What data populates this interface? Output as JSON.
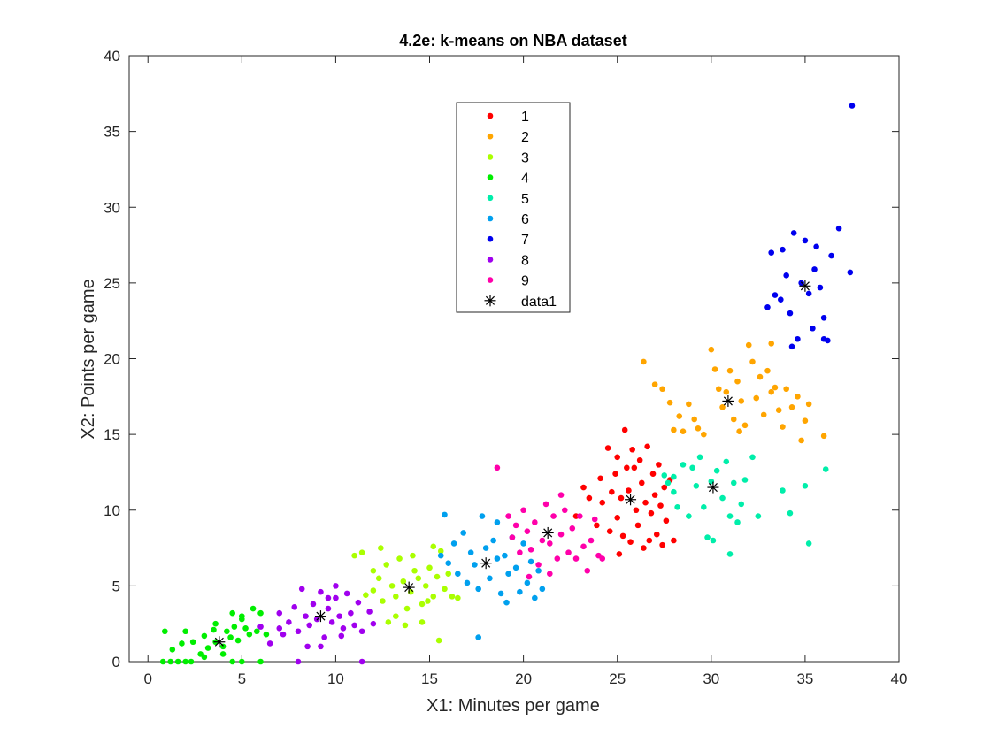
{
  "chart_data": {
    "type": "scatter",
    "title": "4.2e: k-means on NBA dataset",
    "xlabel": "X1: Minutes per game",
    "ylabel": "X2: Points per game",
    "xlim": [
      -1,
      40
    ],
    "ylim": [
      0,
      40
    ],
    "xticks": [
      0,
      5,
      10,
      15,
      20,
      25,
      30,
      35,
      40
    ],
    "yticks": [
      0,
      5,
      10,
      15,
      20,
      25,
      30,
      35,
      40
    ],
    "grid": false,
    "legend_position": "top-center",
    "series": [
      {
        "name": "1",
        "color": "#ff0000",
        "marker": "dot",
        "points": [
          [
            24.2,
            10.5
          ],
          [
            24.5,
            14.1
          ],
          [
            24.7,
            11.2
          ],
          [
            24.9,
            12.4
          ],
          [
            25.0,
            9.5
          ],
          [
            25.2,
            10.8
          ],
          [
            25.3,
            8.3
          ],
          [
            25.4,
            15.3
          ],
          [
            25.5,
            12.8
          ],
          [
            25.6,
            11.3
          ],
          [
            25.8,
            14.0
          ],
          [
            25.9,
            12.8
          ],
          [
            26.0,
            10.0
          ],
          [
            26.1,
            9.0
          ],
          [
            26.2,
            13.3
          ],
          [
            26.3,
            11.8
          ],
          [
            26.4,
            7.5
          ],
          [
            26.5,
            10.5
          ],
          [
            26.6,
            14.2
          ],
          [
            26.8,
            9.8
          ],
          [
            26.9,
            12.4
          ],
          [
            27.0,
            11.0
          ],
          [
            27.1,
            8.4
          ],
          [
            27.2,
            13.0
          ],
          [
            27.3,
            10.3
          ],
          [
            27.5,
            11.5
          ],
          [
            27.6,
            9.3
          ],
          [
            27.8,
            12.0
          ],
          [
            23.9,
            9.0
          ],
          [
            24.1,
            12.1
          ],
          [
            23.5,
            10.8
          ],
          [
            23.2,
            11.5
          ],
          [
            24.6,
            8.6
          ],
          [
            25.1,
            7.1
          ],
          [
            25.7,
            7.9
          ],
          [
            26.7,
            8.0
          ],
          [
            27.4,
            7.7
          ],
          [
            28.0,
            8.0
          ],
          [
            22.8,
            9.6
          ],
          [
            25.0,
            13.5
          ]
        ]
      },
      {
        "name": "2",
        "color": "#ffa500",
        "marker": "dot",
        "points": [
          [
            26.4,
            19.8
          ],
          [
            27.0,
            18.3
          ],
          [
            27.4,
            18.0
          ],
          [
            27.8,
            17.1
          ],
          [
            28.3,
            16.2
          ],
          [
            28.5,
            15.2
          ],
          [
            28.8,
            17.0
          ],
          [
            29.1,
            16.0
          ],
          [
            29.3,
            15.4
          ],
          [
            30.0,
            20.6
          ],
          [
            30.2,
            19.3
          ],
          [
            30.4,
            18.0
          ],
          [
            30.6,
            16.8
          ],
          [
            30.8,
            17.8
          ],
          [
            31.0,
            19.2
          ],
          [
            31.2,
            16.0
          ],
          [
            31.4,
            18.5
          ],
          [
            31.6,
            17.2
          ],
          [
            31.8,
            15.6
          ],
          [
            32.0,
            20.9
          ],
          [
            32.2,
            19.8
          ],
          [
            32.4,
            17.4
          ],
          [
            32.6,
            18.8
          ],
          [
            32.8,
            16.3
          ],
          [
            33.0,
            19.2
          ],
          [
            33.2,
            17.8
          ],
          [
            33.4,
            18.1
          ],
          [
            33.6,
            16.6
          ],
          [
            33.8,
            15.5
          ],
          [
            34.0,
            18.0
          ],
          [
            34.3,
            16.8
          ],
          [
            34.6,
            17.5
          ],
          [
            34.8,
            14.6
          ],
          [
            35.0,
            15.9
          ],
          [
            36.0,
            14.9
          ],
          [
            28.0,
            15.3
          ],
          [
            29.6,
            15.0
          ],
          [
            31.5,
            15.2
          ],
          [
            33.2,
            21.0
          ],
          [
            35.2,
            17.0
          ]
        ]
      },
      {
        "name": "3",
        "color": "#aaff00",
        "marker": "dot",
        "points": [
          [
            11.0,
            7.0
          ],
          [
            11.4,
            7.2
          ],
          [
            12.0,
            6.0
          ],
          [
            12.3,
            5.5
          ],
          [
            12.5,
            4.0
          ],
          [
            12.7,
            6.4
          ],
          [
            13.0,
            5.0
          ],
          [
            13.2,
            4.3
          ],
          [
            13.4,
            6.8
          ],
          [
            13.6,
            5.3
          ],
          [
            13.8,
            3.5
          ],
          [
            14.0,
            4.6
          ],
          [
            14.2,
            6.0
          ],
          [
            14.4,
            5.5
          ],
          [
            14.6,
            3.8
          ],
          [
            14.8,
            5.0
          ],
          [
            15.0,
            6.2
          ],
          [
            15.2,
            4.3
          ],
          [
            15.4,
            5.6
          ],
          [
            15.6,
            7.3
          ],
          [
            15.8,
            4.8
          ],
          [
            16.0,
            5.8
          ],
          [
            16.2,
            4.3
          ],
          [
            12.0,
            4.7
          ],
          [
            13.2,
            3.0
          ],
          [
            14.1,
            7.0
          ],
          [
            15.2,
            7.6
          ],
          [
            12.4,
            7.5
          ],
          [
            15.5,
            1.4
          ],
          [
            16.5,
            4.2
          ],
          [
            13.7,
            2.4
          ],
          [
            14.6,
            2.6
          ],
          [
            11.6,
            4.4
          ],
          [
            12.8,
            2.6
          ],
          [
            14.9,
            4.0
          ]
        ]
      },
      {
        "name": "4",
        "color": "#00ee00",
        "marker": "dot",
        "points": [
          [
            0.8,
            0.0
          ],
          [
            1.2,
            0.0
          ],
          [
            1.6,
            0.0
          ],
          [
            2.0,
            0.0
          ],
          [
            2.3,
            0.0
          ],
          [
            0.9,
            2.0
          ],
          [
            1.3,
            0.8
          ],
          [
            2.0,
            2.0
          ],
          [
            2.4,
            1.3
          ],
          [
            2.8,
            0.5
          ],
          [
            3.0,
            1.7
          ],
          [
            3.2,
            0.9
          ],
          [
            3.5,
            2.1
          ],
          [
            3.6,
            1.3
          ],
          [
            4.0,
            1.0
          ],
          [
            4.2,
            2.0
          ],
          [
            4.4,
            1.6
          ],
          [
            4.6,
            2.3
          ],
          [
            4.8,
            1.4
          ],
          [
            5.0,
            2.8
          ],
          [
            5.2,
            2.2
          ],
          [
            5.4,
            1.8
          ],
          [
            5.6,
            3.5
          ],
          [
            5.8,
            2.0
          ],
          [
            6.0,
            3.2
          ],
          [
            4.5,
            0.0
          ],
          [
            5.0,
            0.0
          ],
          [
            6.0,
            0.0
          ],
          [
            3.6,
            2.5
          ],
          [
            4.5,
            3.2
          ],
          [
            5.0,
            3.0
          ],
          [
            4.0,
            0.5
          ],
          [
            3.0,
            0.3
          ],
          [
            1.8,
            1.2
          ],
          [
            6.3,
            1.8
          ]
        ]
      },
      {
        "name": "5",
        "color": "#00eeaa",
        "marker": "dot",
        "points": [
          [
            27.5,
            12.3
          ],
          [
            28.0,
            11.2
          ],
          [
            28.2,
            10.2
          ],
          [
            28.5,
            13.0
          ],
          [
            28.8,
            9.6
          ],
          [
            29.0,
            12.8
          ],
          [
            29.2,
            11.6
          ],
          [
            29.4,
            13.5
          ],
          [
            29.6,
            10.2
          ],
          [
            29.8,
            8.2
          ],
          [
            30.0,
            11.9
          ],
          [
            30.3,
            12.6
          ],
          [
            30.6,
            10.8
          ],
          [
            30.8,
            13.2
          ],
          [
            31.0,
            9.6
          ],
          [
            31.2,
            11.8
          ],
          [
            31.4,
            9.2
          ],
          [
            31.6,
            10.4
          ],
          [
            31.8,
            12.0
          ],
          [
            32.2,
            13.5
          ],
          [
            32.5,
            9.6
          ],
          [
            33.8,
            11.3
          ],
          [
            34.2,
            9.8
          ],
          [
            35.0,
            11.6
          ],
          [
            35.2,
            7.8
          ],
          [
            36.1,
            12.7
          ],
          [
            31.0,
            7.1
          ],
          [
            30.1,
            8.0
          ],
          [
            28.0,
            12.2
          ],
          [
            27.7,
            11.8
          ]
        ]
      },
      {
        "name": "6",
        "color": "#00a0ee",
        "marker": "dot",
        "points": [
          [
            15.6,
            7.0
          ],
          [
            15.8,
            9.7
          ],
          [
            16.0,
            6.5
          ],
          [
            16.3,
            7.8
          ],
          [
            16.5,
            5.8
          ],
          [
            16.8,
            8.5
          ],
          [
            17.0,
            5.2
          ],
          [
            17.2,
            7.2
          ],
          [
            17.4,
            6.4
          ],
          [
            17.6,
            4.8
          ],
          [
            17.8,
            9.6
          ],
          [
            18.0,
            7.5
          ],
          [
            18.2,
            5.5
          ],
          [
            18.4,
            8.0
          ],
          [
            18.6,
            6.8
          ],
          [
            18.8,
            4.5
          ],
          [
            19.0,
            7.0
          ],
          [
            19.2,
            5.8
          ],
          [
            19.4,
            8.2
          ],
          [
            19.6,
            6.2
          ],
          [
            19.8,
            4.6
          ],
          [
            20.0,
            7.8
          ],
          [
            20.2,
            5.2
          ],
          [
            20.4,
            6.6
          ],
          [
            20.6,
            4.2
          ],
          [
            20.8,
            6.0
          ],
          [
            21.0,
            4.8
          ],
          [
            17.6,
            1.6
          ],
          [
            18.6,
            9.2
          ],
          [
            19.1,
            3.9
          ]
        ]
      },
      {
        "name": "7",
        "color": "#0000ee",
        "marker": "dot",
        "points": [
          [
            33.0,
            23.4
          ],
          [
            33.2,
            27.0
          ],
          [
            33.4,
            24.2
          ],
          [
            33.8,
            27.2
          ],
          [
            34.0,
            25.5
          ],
          [
            34.2,
            23.0
          ],
          [
            34.4,
            28.3
          ],
          [
            34.6,
            21.3
          ],
          [
            34.8,
            25.0
          ],
          [
            35.0,
            27.8
          ],
          [
            35.2,
            24.3
          ],
          [
            35.4,
            22.0
          ],
          [
            35.6,
            27.4
          ],
          [
            35.8,
            24.7
          ],
          [
            36.0,
            22.7
          ],
          [
            36.2,
            21.2
          ],
          [
            36.4,
            26.8
          ],
          [
            36.8,
            28.6
          ],
          [
            37.4,
            25.7
          ],
          [
            37.5,
            36.7
          ],
          [
            34.3,
            20.8
          ],
          [
            35.5,
            25.9
          ],
          [
            33.7,
            23.9
          ],
          [
            36.0,
            21.3
          ]
        ]
      },
      {
        "name": "8",
        "color": "#a000ee",
        "marker": "dot",
        "points": [
          [
            6.0,
            2.3
          ],
          [
            6.5,
            1.2
          ],
          [
            7.0,
            3.2
          ],
          [
            7.2,
            1.8
          ],
          [
            7.5,
            2.6
          ],
          [
            7.8,
            3.6
          ],
          [
            8.0,
            2.0
          ],
          [
            8.2,
            4.8
          ],
          [
            8.4,
            3.0
          ],
          [
            8.6,
            2.4
          ],
          [
            8.8,
            3.8
          ],
          [
            9.0,
            2.8
          ],
          [
            9.2,
            4.6
          ],
          [
            9.4,
            1.6
          ],
          [
            9.6,
            3.5
          ],
          [
            9.8,
            2.6
          ],
          [
            10.0,
            4.2
          ],
          [
            10.2,
            3.0
          ],
          [
            10.4,
            2.2
          ],
          [
            10.6,
            4.5
          ],
          [
            10.8,
            3.2
          ],
          [
            11.0,
            2.4
          ],
          [
            11.2,
            3.9
          ],
          [
            11.4,
            2.0
          ],
          [
            11.8,
            3.3
          ],
          [
            12.0,
            2.5
          ],
          [
            8.0,
            0.0
          ],
          [
            11.4,
            0.0
          ],
          [
            10.0,
            5.0
          ],
          [
            9.2,
            1.0
          ],
          [
            8.5,
            1.0
          ],
          [
            7.0,
            2.2
          ],
          [
            10.3,
            1.7
          ],
          [
            9.6,
            4.2
          ]
        ]
      },
      {
        "name": "9",
        "color": "#ff00aa",
        "marker": "dot",
        "points": [
          [
            18.6,
            12.8
          ],
          [
            19.2,
            9.6
          ],
          [
            19.4,
            8.2
          ],
          [
            19.6,
            9.0
          ],
          [
            19.8,
            7.2
          ],
          [
            20.0,
            10.0
          ],
          [
            20.2,
            8.6
          ],
          [
            20.4,
            7.4
          ],
          [
            20.6,
            9.2
          ],
          [
            20.8,
            6.4
          ],
          [
            21.0,
            8.0
          ],
          [
            21.2,
            10.4
          ],
          [
            21.4,
            7.8
          ],
          [
            21.6,
            9.6
          ],
          [
            21.8,
            6.8
          ],
          [
            22.0,
            8.4
          ],
          [
            22.2,
            10.0
          ],
          [
            22.4,
            7.2
          ],
          [
            22.6,
            8.8
          ],
          [
            22.8,
            6.8
          ],
          [
            23.0,
            9.6
          ],
          [
            23.2,
            7.6
          ],
          [
            23.4,
            6.0
          ],
          [
            23.6,
            8.0
          ],
          [
            23.8,
            9.4
          ],
          [
            24.0,
            7.0
          ],
          [
            24.2,
            6.8
          ],
          [
            21.4,
            5.8
          ],
          [
            20.3,
            5.6
          ],
          [
            22.0,
            11.0
          ]
        ]
      },
      {
        "name": "data1",
        "color": "#000000",
        "marker": "asterisk",
        "points": [
          [
            3.8,
            1.3
          ],
          [
            9.2,
            3.0
          ],
          [
            13.9,
            4.9
          ],
          [
            18.0,
            6.5
          ],
          [
            21.3,
            8.5
          ],
          [
            25.7,
            10.7
          ],
          [
            30.1,
            11.5
          ],
          [
            30.9,
            17.2
          ],
          [
            35.0,
            24.8
          ]
        ]
      }
    ]
  }
}
